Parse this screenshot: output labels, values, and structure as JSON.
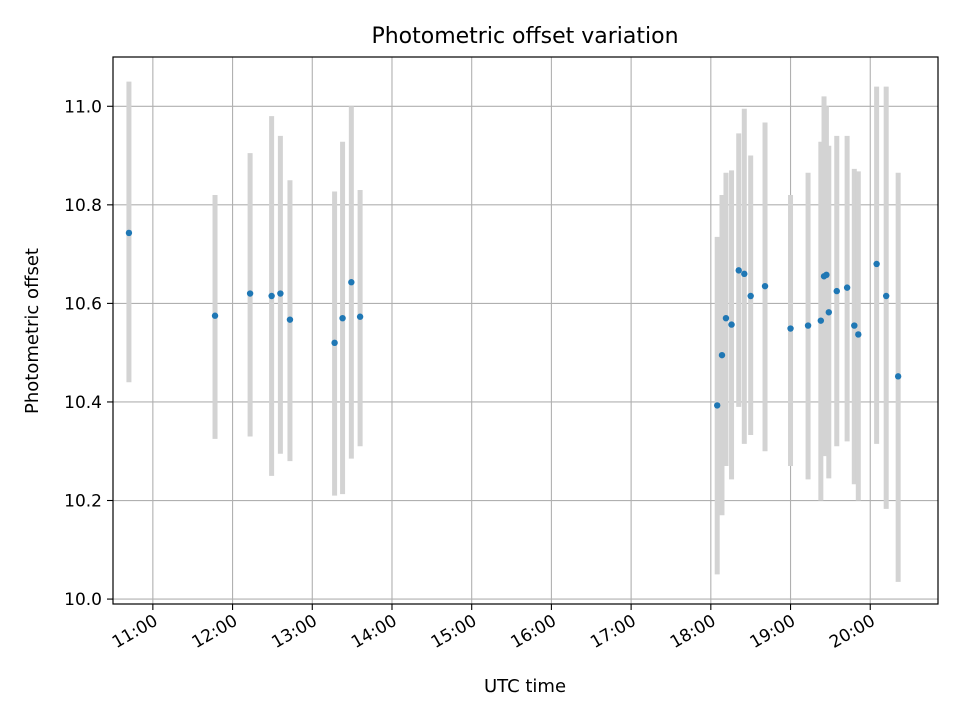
{
  "chart_data": {
    "type": "scatter",
    "title": "Photometric offset variation",
    "xlabel": "UTC time",
    "ylabel": "Photometric offset",
    "x_unit": "UTC hour of day",
    "xlim": [
      10.5,
      20.85
    ],
    "ylim": [
      9.99,
      11.1
    ],
    "grid": true,
    "legend": "none",
    "x_ticks": [
      11,
      12,
      13,
      14,
      15,
      16,
      17,
      18,
      19,
      20
    ],
    "x_tick_labels": [
      "11:00",
      "12:00",
      "13:00",
      "14:00",
      "15:00",
      "16:00",
      "17:00",
      "18:00",
      "19:00",
      "20:00"
    ],
    "y_ticks": [
      10.0,
      10.2,
      10.4,
      10.6,
      10.8,
      11.0
    ],
    "y_tick_labels": [
      "10.0",
      "10.2",
      "10.4",
      "10.6",
      "10.8",
      "11.0"
    ],
    "point_color": "#1f77b4",
    "errorbar_color": "#d3d3d3",
    "points": [
      {
        "x": 10.7,
        "y": 10.743,
        "lo": 10.44,
        "hi": 11.05
      },
      {
        "x": 11.78,
        "y": 10.575,
        "lo": 10.325,
        "hi": 10.82
      },
      {
        "x": 12.22,
        "y": 10.62,
        "lo": 10.33,
        "hi": 10.905
      },
      {
        "x": 12.49,
        "y": 10.615,
        "lo": 10.25,
        "hi": 10.98
      },
      {
        "x": 12.6,
        "y": 10.62,
        "lo": 10.295,
        "hi": 10.94
      },
      {
        "x": 12.72,
        "y": 10.567,
        "lo": 10.28,
        "hi": 10.85
      },
      {
        "x": 13.28,
        "y": 10.52,
        "lo": 10.21,
        "hi": 10.827
      },
      {
        "x": 13.38,
        "y": 10.57,
        "lo": 10.213,
        "hi": 10.928
      },
      {
        "x": 13.49,
        "y": 10.643,
        "lo": 10.285,
        "hi": 11.0
      },
      {
        "x": 13.6,
        "y": 10.573,
        "lo": 10.31,
        "hi": 10.83
      },
      {
        "x": 18.08,
        "y": 10.393,
        "lo": 10.05,
        "hi": 10.735
      },
      {
        "x": 18.14,
        "y": 10.495,
        "lo": 10.17,
        "hi": 10.82
      },
      {
        "x": 18.19,
        "y": 10.57,
        "lo": 10.27,
        "hi": 10.865
      },
      {
        "x": 18.26,
        "y": 10.557,
        "lo": 10.243,
        "hi": 10.87
      },
      {
        "x": 18.35,
        "y": 10.667,
        "lo": 10.39,
        "hi": 10.945
      },
      {
        "x": 18.42,
        "y": 10.66,
        "lo": 10.315,
        "hi": 10.995
      },
      {
        "x": 18.5,
        "y": 10.615,
        "lo": 10.333,
        "hi": 10.9
      },
      {
        "x": 18.68,
        "y": 10.635,
        "lo": 10.3,
        "hi": 10.967
      },
      {
        "x": 19.0,
        "y": 10.549,
        "lo": 10.27,
        "hi": 10.82
      },
      {
        "x": 19.22,
        "y": 10.555,
        "lo": 10.243,
        "hi": 10.865
      },
      {
        "x": 19.38,
        "y": 10.565,
        "lo": 10.2,
        "hi": 10.928
      },
      {
        "x": 19.42,
        "y": 10.655,
        "lo": 10.29,
        "hi": 11.02
      },
      {
        "x": 19.45,
        "y": 10.658,
        "lo": 10.315,
        "hi": 11.0
      },
      {
        "x": 19.48,
        "y": 10.582,
        "lo": 10.245,
        "hi": 10.92
      },
      {
        "x": 19.58,
        "y": 10.625,
        "lo": 10.31,
        "hi": 10.94
      },
      {
        "x": 19.71,
        "y": 10.632,
        "lo": 10.32,
        "hi": 10.94
      },
      {
        "x": 19.8,
        "y": 10.555,
        "lo": 10.233,
        "hi": 10.873
      },
      {
        "x": 19.85,
        "y": 10.537,
        "lo": 10.2,
        "hi": 10.868
      },
      {
        "x": 20.08,
        "y": 10.68,
        "lo": 10.315,
        "hi": 11.04
      },
      {
        "x": 20.2,
        "y": 10.615,
        "lo": 10.183,
        "hi": 11.04
      },
      {
        "x": 20.35,
        "y": 10.452,
        "lo": 10.035,
        "hi": 10.865
      }
    ]
  }
}
